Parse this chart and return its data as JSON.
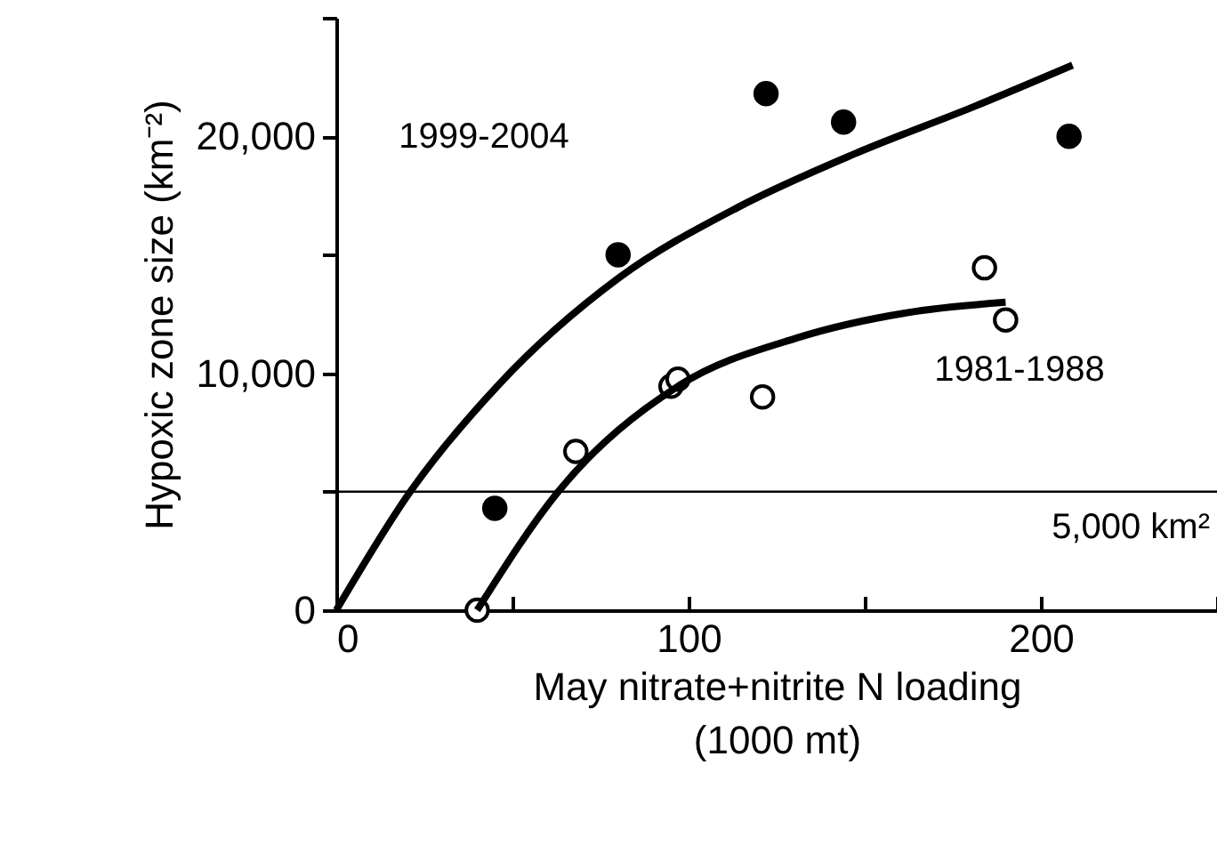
{
  "chart_data": {
    "type": "scatter",
    "xlabel": "May nitrate+nitrite N loading\n(1000 mt)",
    "ylabel": "Hypoxic zone size (km⁻²)",
    "xlim": [
      0,
      250
    ],
    "xticks": [
      0,
      {
        "value": 50,
        "label": null
      },
      100,
      {
        "value": 150,
        "label": null
      },
      200,
      {
        "value": 250,
        "label": null
      }
    ],
    "ylim": [
      0,
      25000
    ],
    "yticks": [
      {
        "value": 0,
        "label": "0"
      },
      {
        "value": 5000,
        "label": null
      },
      {
        "value": 10000,
        "label": "10,000"
      },
      {
        "value": 15000,
        "label": null
      },
      {
        "value": 20000,
        "label": "20,000"
      },
      {
        "value": 25000,
        "label": null
      }
    ],
    "grid": false,
    "series": [
      {
        "color": "#000000",
        "marker": "circle",
        "x": [
          45,
          80,
          122,
          144,
          208
        ],
        "values": [
          4300,
          15000,
          21800,
          20600,
          20000
        ]
      },
      {
        "color": "#ffffff",
        "marker": "circle",
        "x": [
          40,
          68,
          95,
          97,
          121,
          184,
          190
        ],
        "values": [
          0,
          6700,
          9450,
          9750,
          9000,
          14450,
          12250
        ]
      },
      {
        "type": "line",
        "color": "#000000",
        "marker": "none",
        "x": [
          0,
          21,
          46,
          80,
          114,
          147,
          181,
          209
        ],
        "values": [
          0,
          5000,
          9500,
          14000,
          17000,
          19250,
          21250,
          23000
        ]
      },
      {
        "type": "line",
        "color": "#000000",
        "marker": "none",
        "x": [
          40,
          63,
          97,
          131,
          164,
          190
        ],
        "values": [
          0,
          5000,
          9450,
          11500,
          12600,
          13000
        ]
      }
    ],
    "ref_lines": [
      {
        "axis": "y",
        "value": 5000,
        "label": "5,000 km²",
        "color": "#000000"
      }
    ],
    "annotations": [
      "1999-2004",
      "1981-1988"
    ]
  }
}
